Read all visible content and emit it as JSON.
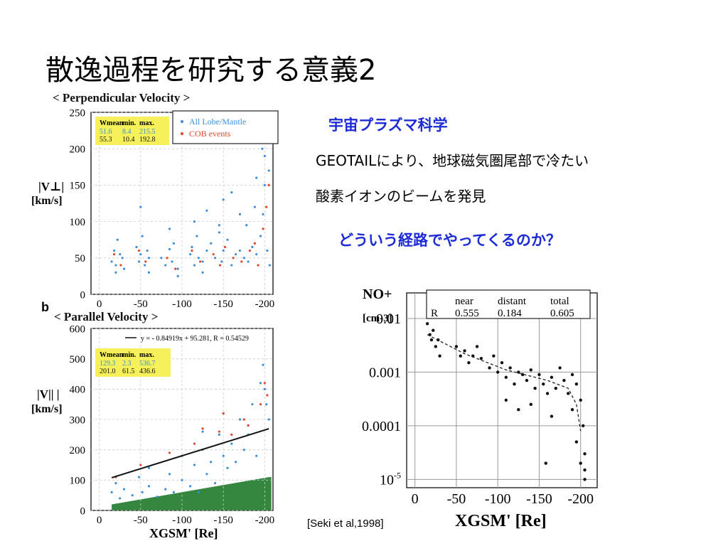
{
  "slide": {
    "title": "散逸過程を研究する意義2",
    "science_title": "宇宙プラズマ科学",
    "body_line1": "GEOTAILにより、地球磁気圏尾部で冷たい",
    "body_line2": "酸素イオンのビームを発見",
    "question": "どういう経路でやってくるのか？",
    "citation": "[Seki et al,1998]",
    "panel_b_letter": "b"
  },
  "colors": {
    "lobe_points": "#3b8fd9",
    "cob_points": "#e0452a",
    "green_region": "#1f7a2a",
    "stats_box": "#f6f05a",
    "heading_blue": "#1c2bd6"
  },
  "chart_data": [
    {
      "type": "scatter",
      "title": "< Perpendicular Velocity >",
      "ylabel_line1": "|V⊥|",
      "ylabel_line2": "[km/s]",
      "xlabel": "",
      "x_ticks": [
        "0",
        "-50",
        "-100",
        "-150",
        "-200"
      ],
      "y_ticks": [
        "0",
        "50",
        "100",
        "150",
        "200",
        "250"
      ],
      "xlim": [
        10,
        -210
      ],
      "ylim": [
        0,
        250
      ],
      "legend": {
        "position": "top-right",
        "entries": [
          "All Lobe/Mantle",
          "COB events"
        ]
      },
      "stats_table": {
        "headers": [
          "Wmean",
          "min.",
          "max."
        ],
        "rows": [
          [
            "51.6",
            "8.4",
            "215.5"
          ],
          [
            "55.3",
            "10.4",
            "192.8"
          ]
        ]
      },
      "series": [
        {
          "name": "All Lobe/Mantle",
          "marker": "dot",
          "color": "#3b8fd9",
          "x": [
            -15,
            -18,
            -20,
            -22,
            -25,
            -28,
            -30,
            -45,
            -48,
            -50,
            -52,
            -55,
            -58,
            -60,
            -75,
            -80,
            -85,
            -88,
            -90,
            -95,
            -110,
            -112,
            -115,
            -118,
            -120,
            -125,
            -130,
            -135,
            -140,
            -145,
            -148,
            -150,
            -155,
            -160,
            -165,
            -170,
            -175,
            -178,
            -180,
            -185,
            -188,
            -190,
            -195,
            -198,
            -200,
            -203,
            -206,
            -50,
            -130,
            -150,
            -160,
            -190,
            -200,
            -85,
            -115,
            -170,
            -197,
            -205,
            -145,
            -20,
            -60,
            -95,
            -125
          ],
          "y": [
            45,
            60,
            40,
            75,
            55,
            50,
            35,
            65,
            45,
            55,
            80,
            40,
            60,
            50,
            50,
            40,
            62,
            45,
            70,
            35,
            55,
            65,
            40,
            80,
            50,
            45,
            60,
            70,
            50,
            85,
            45,
            60,
            75,
            40,
            55,
            60,
            50,
            95,
            45,
            65,
            120,
            55,
            80,
            110,
            150,
            60,
            40,
            120,
            115,
            130,
            140,
            160,
            190,
            90,
            100,
            110,
            200,
            170,
            95,
            30,
            30,
            25,
            30
          ]
        },
        {
          "name": "COB events",
          "marker": "dot",
          "color": "#e0452a",
          "x": [
            -18,
            -26,
            -48,
            -56,
            -82,
            -92,
            -112,
            -122,
            -138,
            -146,
            -152,
            -162,
            -172,
            -182,
            -188,
            -192,
            -198,
            -202,
            -205
          ],
          "y": [
            55,
            40,
            60,
            45,
            50,
            35,
            60,
            45,
            55,
            40,
            65,
            50,
            45,
            60,
            70,
            40,
            90,
            120,
            150
          ]
        }
      ]
    },
    {
      "type": "scatter",
      "title": "< Parallel Velocity >",
      "ylabel_line1": "|V||  |",
      "ylabel_line2": "[km/s]",
      "xlabel": "XGSM' [Re]",
      "x_ticks": [
        "0",
        "-50",
        "-100",
        "-150",
        "-200"
      ],
      "y_ticks": [
        "0",
        "100",
        "200",
        "300",
        "400",
        "500",
        "600"
      ],
      "xlim": [
        10,
        -210
      ],
      "ylim": [
        0,
        600
      ],
      "fit_line": {
        "label": "y = - 0.84919x + 95.281, R = 0.54529",
        "slope": -0.84919,
        "intercept": 95.281,
        "x_range": [
          -15,
          -205
        ]
      },
      "stats_table": {
        "headers": [
          "Wmean",
          "min.",
          "max."
        ],
        "rows": [
          [
            "129.3",
            "2.3",
            "536.7"
          ],
          [
            "201.0",
            "61.5",
            "436.6"
          ]
        ]
      },
      "series": [
        {
          "name": "All Lobe/Mantle",
          "marker": "dot",
          "color": "#3b8fd9",
          "x": [
            -15,
            -20,
            -25,
            -30,
            -40,
            -48,
            -52,
            -60,
            -70,
            -80,
            -85,
            -90,
            -100,
            -110,
            -115,
            -120,
            -125,
            -130,
            -135,
            -140,
            -145,
            -150,
            -155,
            -160,
            -165,
            -170,
            -175,
            -180,
            -185,
            -190,
            -195,
            -200,
            -205,
            -198,
            -202,
            -180,
            -150,
            -125,
            -100,
            -60
          ],
          "y": [
            60,
            90,
            40,
            70,
            50,
            110,
            60,
            80,
            45,
            70,
            120,
            60,
            100,
            80,
            150,
            60,
            200,
            120,
            160,
            90,
            250,
            180,
            140,
            220,
            160,
            300,
            200,
            250,
            350,
            180,
            420,
            400,
            300,
            480,
            350,
            280,
            320,
            260,
            180,
            140
          ]
        },
        {
          "name": "COB events",
          "marker": "dot",
          "color": "#e0452a",
          "x": [
            -20,
            -50,
            -85,
            -115,
            -125,
            -145,
            -150,
            -160,
            -175,
            -180,
            -195,
            -200,
            -203
          ],
          "y": [
            110,
            150,
            190,
            220,
            270,
            260,
            320,
            250,
            300,
            280,
            350,
            420,
            380
          ]
        }
      ]
    },
    {
      "type": "scatter",
      "title": "",
      "ylabel_line1": "NO+",
      "ylabel_line2": "[cm-3]",
      "xlabel": "XGSM' [Re]",
      "log_y": true,
      "x_ticks": [
        "0",
        "-50",
        "-100",
        "-150",
        "-200"
      ],
      "y_ticks": [
        "0.01",
        "0.001",
        "0.0001",
        "10-5"
      ],
      "xlim": [
        10,
        -220
      ],
      "ylim": [
        7e-06,
        0.03
      ],
      "stats_table": {
        "headers": [
          "",
          "near",
          "distant",
          "total"
        ],
        "rows": [
          [
            "R",
            "0.555",
            "0.184",
            "0.605"
          ]
        ]
      },
      "series": [
        {
          "name": "",
          "marker": "dot",
          "color": "#111111",
          "x": [
            -15,
            -18,
            -20,
            -22,
            -25,
            -28,
            -30,
            -50,
            -55,
            -60,
            -65,
            -70,
            -75,
            -80,
            -90,
            -95,
            -100,
            -105,
            -110,
            -115,
            -120,
            -125,
            -130,
            -135,
            -140,
            -145,
            -150,
            -155,
            -160,
            -165,
            -170,
            -175,
            -180,
            -185,
            -190,
            -195,
            -200,
            -203,
            -205,
            -110,
            -125,
            -140,
            -165,
            -190,
            -195,
            -200,
            -205,
            -158,
            -205
          ],
          "y": [
            0.008,
            0.005,
            0.004,
            0.006,
            0.003,
            0.004,
            0.002,
            0.003,
            0.002,
            0.0025,
            0.0015,
            0.002,
            0.003,
            0.0018,
            0.0012,
            0.002,
            0.001,
            0.0015,
            0.0008,
            0.0012,
            0.0006,
            0.001,
            0.0009,
            0.0007,
            0.0011,
            0.0005,
            0.0009,
            0.0006,
            0.0004,
            0.0008,
            0.0005,
            0.0012,
            0.0007,
            0.0004,
            0.0009,
            0.0006,
            0.0003,
            0.0001,
            3e-05,
            0.0003,
            0.0002,
            0.00025,
            0.00015,
            0.0002,
            5e-05,
            2e-05,
            1e-05,
            2e-05,
            1.5e-05
          ]
        }
      ]
    }
  ]
}
